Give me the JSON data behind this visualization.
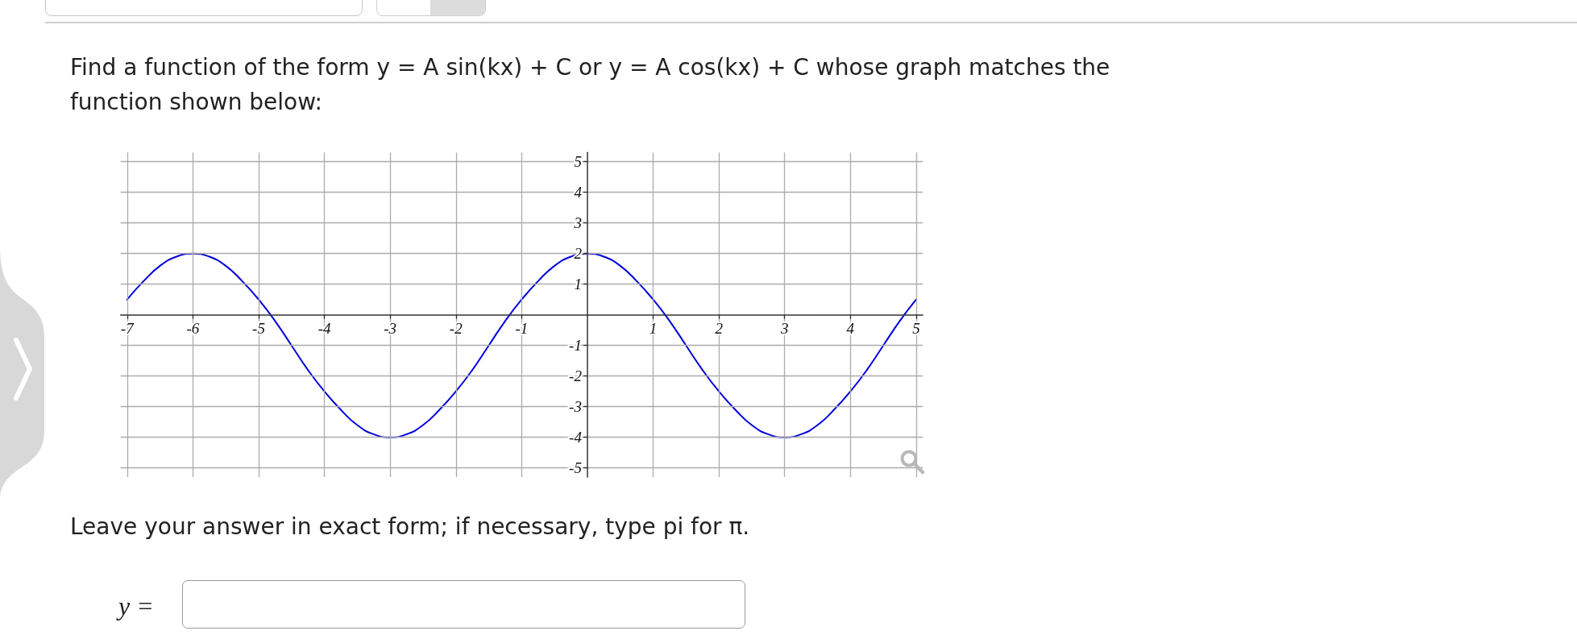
{
  "chart_data": {
    "type": "line",
    "title": "Find a function of the form y = A sin(kx) + C or y = A cos(kx) + C whose graph matches the function shown below:",
    "annotations": [
      "Leave your answer in exact form; if necessary, type pi for π.",
      "y ="
    ],
    "x": [
      -7,
      -6.75,
      -6.5,
      -6.25,
      -6,
      -5.75,
      -5.5,
      -5.25,
      -5,
      -4.75,
      -4.5,
      -4.25,
      -4,
      -3.75,
      -3.5,
      -3.25,
      -3,
      -2.75,
      -2.5,
      -2.25,
      -2,
      -1.75,
      -1.5,
      -1.25,
      -1,
      -0.75,
      -0.5,
      -0.25,
      0,
      0.25,
      0.5,
      0.75,
      1,
      1.25,
      1.5,
      1.75,
      2,
      2.25,
      2.5,
      2.75,
      3,
      3.25,
      3.5,
      3.75,
      4,
      4.25,
      4.5,
      4.75,
      5
    ],
    "series": [
      {
        "color": "#0000dd",
        "values": [
          0.5,
          1.1,
          1.6,
          1.9,
          2,
          1.9,
          1.6,
          1.1,
          0.5,
          -0.2,
          -1,
          -1.8,
          -2.5,
          -3.1,
          -3.6,
          -3.9,
          -4,
          -3.9,
          -3.6,
          -3.1,
          -2.5,
          -1.8,
          -1,
          -0.2,
          0.5,
          1.1,
          1.6,
          1.9,
          2,
          1.9,
          1.6,
          1.1,
          0.5,
          -0.2,
          -1,
          -1.8,
          -2.5,
          -3.1,
          -3.6,
          -3.9,
          -4,
          -3.9,
          -3.6,
          -3.1,
          -2.5,
          -1.8,
          -1,
          -0.2,
          0.5
        ]
      }
    ],
    "xlim": [
      -7.1,
      5.1
    ],
    "ylim": [
      -5.3,
      5.3
    ],
    "xticks": [
      -7,
      -6,
      -5,
      -4,
      -3,
      -2,
      -1,
      1,
      2,
      3,
      4,
      5
    ],
    "yticks": [
      -5,
      -4,
      -3,
      -2,
      -1,
      1,
      2,
      3,
      4,
      5
    ],
    "grid": true,
    "marker": "none",
    "line_style": "solid"
  }
}
